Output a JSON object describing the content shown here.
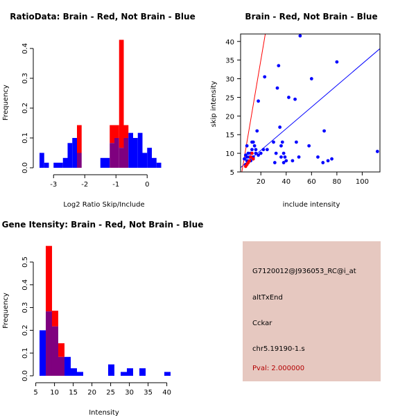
{
  "colors": {
    "brain": "#ff0000",
    "not_brain": "#0000ff",
    "overlap": "#7f007f",
    "panel": "#e6c8c0",
    "pval": "#b30000"
  },
  "chart_data": [
    {
      "id": "ratio",
      "type": "bar",
      "title": "RatioData: Brain - Red, Not Brain - Blue",
      "xlabel": "Log2 Ratio Skip/Include",
      "ylabel": "Frequency",
      "xlim": [
        -3.45,
        0.75
      ],
      "ylim": [
        0,
        0.43
      ],
      "xticks": [
        "-3",
        "-2",
        "-1",
        "0"
      ],
      "xtick_values": [
        -3,
        -2,
        -1,
        0
      ],
      "yticks": [
        "0.0",
        "0.1",
        "0.2",
        "0.3",
        "0.4"
      ],
      "ytick_values": [
        0,
        0.1,
        0.2,
        0.3,
        0.4
      ],
      "bin_width": 0.15,
      "bin_starts": [
        -3.45,
        -3.3,
        -3.15,
        -3.0,
        -2.85,
        -2.7,
        -2.55,
        -2.4,
        -2.25,
        -2.1,
        -1.95,
        -1.8,
        -1.65,
        -1.5,
        -1.35,
        -1.2,
        -1.05,
        -0.9,
        -0.75,
        -0.6,
        -0.45,
        -0.3,
        -0.15,
        0.0,
        0.15,
        0.3,
        0.45,
        0.6
      ],
      "series": [
        {
          "name": "Not Brain",
          "values": [
            0.05,
            0.017,
            0,
            0.017,
            0.017,
            0.033,
            0.083,
            0.1,
            0.05,
            0,
            0,
            0,
            0,
            0.033,
            0.033,
            0.083,
            0.1,
            0.067,
            0.1,
            0.117,
            0.1,
            0.117,
            0.05,
            0.067,
            0.033,
            0.017,
            0,
            0
          ]
        },
        {
          "name": "Brain",
          "values": [
            0,
            0,
            0,
            0,
            0,
            0,
            0,
            0,
            0.143,
            0,
            0,
            0,
            0,
            0,
            0,
            0.143,
            0.143,
            0.429,
            0.143,
            0,
            0,
            0,
            0,
            0,
            0,
            0,
            0,
            0
          ]
        }
      ]
    },
    {
      "id": "scatter",
      "type": "scatter",
      "title": "Brain - Red, Not Brain - Blue",
      "xlabel": "include intensity",
      "ylabel": "skip intensity",
      "xlim": [
        4,
        114
      ],
      "ylim": [
        5,
        42
      ],
      "xticks": [
        "20",
        "40",
        "60",
        "80",
        "100"
      ],
      "xtick_values": [
        20,
        40,
        60,
        80,
        100
      ],
      "yticks": [
        "5",
        "10",
        "15",
        "20",
        "25",
        "30",
        "35",
        "40"
      ],
      "ytick_values": [
        5,
        10,
        15,
        20,
        25,
        30,
        35,
        40
      ],
      "red_line": {
        "slope": 2.0,
        "intercept": -5
      },
      "blue_line": {
        "slope": 0.29,
        "intercept": 5.0
      },
      "series": [
        {
          "name": "Not Brain",
          "points": [
            [
              8,
              7
            ],
            [
              9,
              8
            ],
            [
              10,
              7.5
            ],
            [
              11,
              9
            ],
            [
              12,
              10
            ],
            [
              13,
              11
            ],
            [
              14,
              13
            ],
            [
              15,
              12
            ],
            [
              17,
              16
            ],
            [
              18,
              24
            ],
            [
              20,
              10
            ],
            [
              22,
              11
            ],
            [
              23,
              30.5
            ],
            [
              9,
              12
            ],
            [
              10,
              10
            ],
            [
              11,
              8
            ],
            [
              14,
              9
            ],
            [
              16,
              11
            ],
            [
              30,
              13
            ],
            [
              32,
              10
            ],
            [
              33,
              27.5
            ],
            [
              34,
              33.5
            ],
            [
              35,
              17
            ],
            [
              36,
              9
            ],
            [
              37,
              13
            ],
            [
              38,
              10
            ],
            [
              38,
              7.5
            ],
            [
              39,
              9
            ],
            [
              40,
              8
            ],
            [
              42,
              25
            ],
            [
              45,
              8
            ],
            [
              47,
              24.5
            ],
            [
              48,
              13
            ],
            [
              50,
              9
            ],
            [
              51,
              41.5
            ],
            [
              58,
              12
            ],
            [
              60,
              30
            ],
            [
              65,
              9
            ],
            [
              69,
              7.5
            ],
            [
              70,
              16
            ],
            [
              73,
              8
            ],
            [
              76,
              8.5
            ],
            [
              80,
              34.5
            ],
            [
              112,
              10.5
            ],
            [
              9,
              9
            ],
            [
              12,
              8
            ],
            [
              13,
              13
            ],
            [
              16,
              10
            ],
            [
              18,
              9.5
            ],
            [
              25,
              11
            ],
            [
              36,
              12
            ],
            [
              31,
              7.5
            ],
            [
              7,
              8.5
            ],
            [
              8,
              9.5
            ]
          ]
        },
        {
          "name": "Brain",
          "points": [
            [
              8,
              6.5
            ],
            [
              9,
              7
            ],
            [
              10,
              7.5
            ],
            [
              11,
              8
            ],
            [
              12,
              9
            ],
            [
              13,
              10
            ],
            [
              14,
              8.5
            ]
          ]
        }
      ]
    },
    {
      "id": "intensity",
      "type": "bar",
      "title": "Gene Itensity: Brain - Red, Not Brain - Blue",
      "xlabel": "Intensity",
      "ylabel": "Frequency",
      "xlim": [
        6,
        41
      ],
      "ylim": [
        0,
        0.57
      ],
      "xticks": [
        "5",
        "10",
        "15",
        "20",
        "25",
        "30",
        "35",
        "40"
      ],
      "xtick_values": [
        5,
        10,
        15,
        20,
        25,
        30,
        35,
        40
      ],
      "yticks": [
        "0.0",
        "0.1",
        "0.2",
        "0.3",
        "0.4",
        "0.5"
      ],
      "ytick_values": [
        0,
        0.1,
        0.2,
        0.3,
        0.4,
        0.5
      ],
      "bin_width": 1.67,
      "bin_starts": [
        6.0,
        7.67,
        9.33,
        11.0,
        12.67,
        14.33,
        16.0,
        17.67,
        19.33,
        21.0,
        22.67,
        24.33,
        26.0,
        27.67,
        29.33,
        31.0,
        32.67,
        34.33,
        36.0,
        37.67,
        39.33
      ],
      "series": [
        {
          "name": "Not Brain",
          "values": [
            0.2,
            0.283,
            0.217,
            0.083,
            0.083,
            0.033,
            0.017,
            0,
            0,
            0,
            0,
            0.05,
            0,
            0.017,
            0.033,
            0,
            0.033,
            0,
            0,
            0,
            0.017
          ]
        },
        {
          "name": "Brain",
          "values": [
            0,
            0.571,
            0.286,
            0.143,
            0,
            0,
            0,
            0,
            0,
            0,
            0,
            0,
            0,
            0,
            0,
            0,
            0,
            0,
            0,
            0,
            0
          ]
        }
      ]
    }
  ],
  "info": {
    "probe": "G7120012@J936053_RC@i_at",
    "event": "altTxEnd",
    "gene": "Cckar",
    "location": "chr5.19190-1.s",
    "pval": "Pval: 2.000000"
  }
}
